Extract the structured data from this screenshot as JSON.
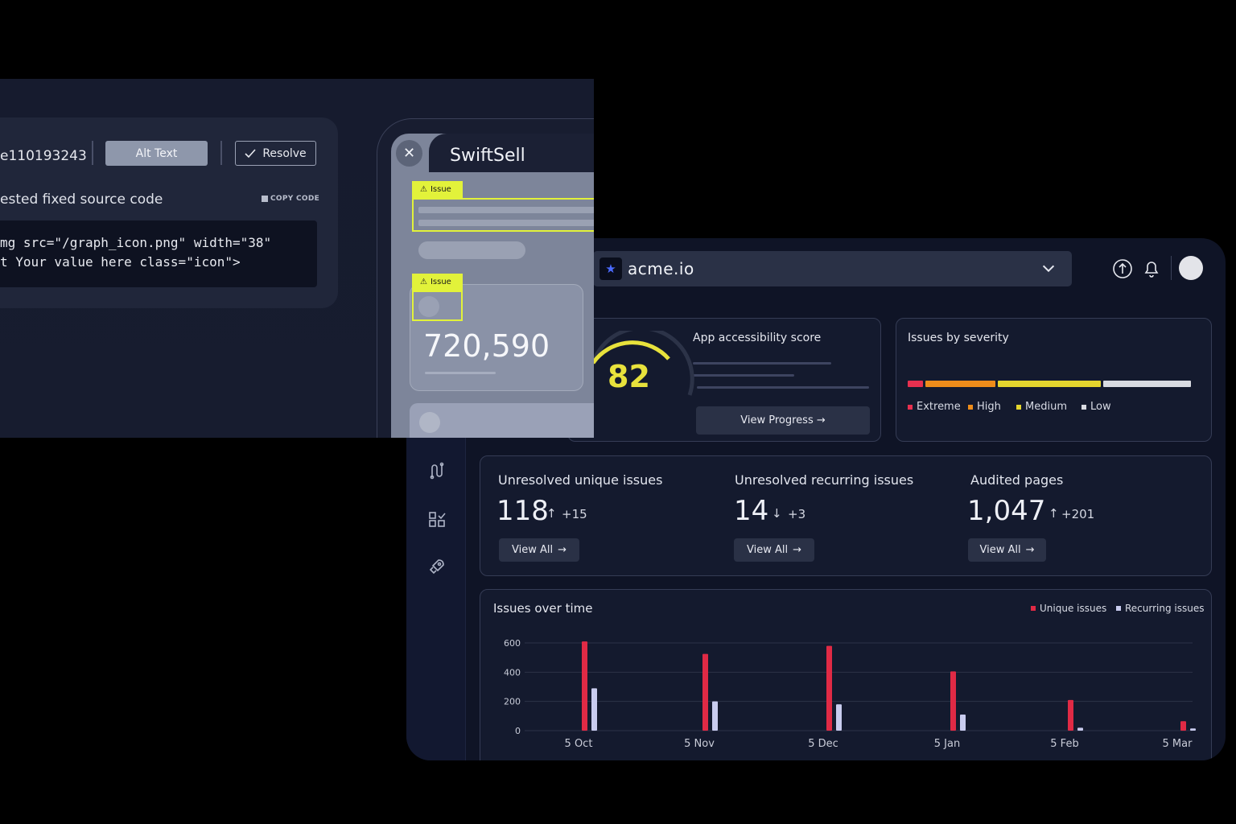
{
  "code_panel": {
    "issue_id": "e110193243",
    "alt_text_button": "Alt Text",
    "resolve_button": "Resolve",
    "suggested_label": "ested fixed source code",
    "copy_code": "COPY CODE",
    "code_line_1": "mg src=\"/graph_icon.png\" width=\"38\"",
    "code_line_2": "t Your value here class=\"icon\">"
  },
  "phone": {
    "app_name": "SwiftSell",
    "issue_tag_1": "Issue",
    "issue_tag_2": "Issue",
    "metric_value": "720,590"
  },
  "topbar": {
    "site": "acme.io"
  },
  "score_card": {
    "title": "App accessibility score",
    "score": "82",
    "score_value": 82,
    "view_progress": "View Progress →"
  },
  "severity_card": {
    "title": "Issues by severity",
    "segments": [
      {
        "label": "Extreme",
        "color": "#e8304f",
        "fraction": 0.06
      },
      {
        "label": "High",
        "color": "#ee8c1a",
        "fraction": 0.25
      },
      {
        "label": "Medium",
        "color": "#e4d52e",
        "fraction": 0.36
      },
      {
        "label": "Low",
        "color": "#d9dbe2",
        "fraction": 0.31
      }
    ]
  },
  "stats": [
    {
      "label": "Unresolved unique issues",
      "value": "118",
      "arrow": "↑",
      "delta": "+15",
      "button": "View All"
    },
    {
      "label": "Unresolved recurring issues",
      "value": "14",
      "arrow": "↓",
      "delta": "+3",
      "button": "View All"
    },
    {
      "label": "Audited pages",
      "value": "1,047",
      "arrow": "↑",
      "delta": "+201",
      "button": "View All"
    }
  ],
  "colors": {
    "accent_yellow": "#e8e23c",
    "unique": "#e02a45",
    "recurring": "#c9ccef"
  },
  "chart_data": {
    "type": "bar",
    "title": "Issues over time",
    "categories": [
      "5 Oct",
      "5 Nov",
      "5 Dec",
      "5 Jan",
      "5 Feb",
      "5 Mar"
    ],
    "series": [
      {
        "name": "Unique issues",
        "values": [
          610,
          525,
          580,
          405,
          210,
          65
        ]
      },
      {
        "name": "Recurring issues",
        "values": [
          290,
          200,
          180,
          110,
          20,
          15
        ]
      }
    ],
    "yticks": [
      "600",
      "400",
      "200",
      "0"
    ],
    "ylim": [
      0,
      600
    ],
    "xlabel": "",
    "ylabel": ""
  }
}
